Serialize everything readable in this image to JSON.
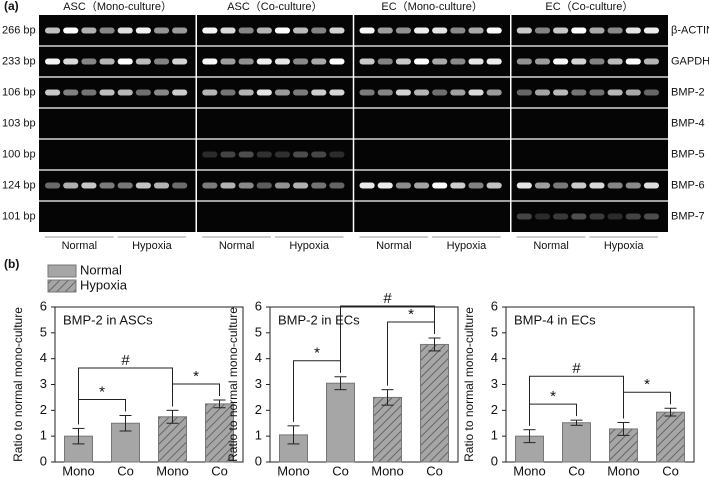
{
  "panel_a": {
    "label": "(a)",
    "groups": [
      "ASC（Mono-culture）",
      "ASC（Co-culture）",
      "EC（Mono-culture）",
      "EC（Co-culture）"
    ],
    "rows": [
      {
        "size": "266 bp",
        "gene": "β-ACTIN"
      },
      {
        "size": "233 bp",
        "gene": "GAPDH"
      },
      {
        "size": "106 bp",
        "gene": "BMP-2"
      },
      {
        "size": "103 bp",
        "gene": "BMP-4"
      },
      {
        "size": "100 bp",
        "gene": "BMP-5"
      },
      {
        "size": "124 bp",
        "gene": "BMP-6"
      },
      {
        "size": "101 bp",
        "gene": "BMP-7"
      }
    ],
    "conditions": [
      "Normal",
      "Hypoxia"
    ]
  },
  "panel_b": {
    "label": "(b)",
    "legend": [
      {
        "name": "Normal",
        "color": "#a6a6a6",
        "hatched": false
      },
      {
        "name": "Hypoxia",
        "color": "#a6a6a6",
        "hatched": true
      }
    ]
  },
  "chart_data": [
    {
      "type": "bar",
      "title": "BMP-2 in ASCs",
      "ylabel": "Ratio to normal mono-culture",
      "categories": [
        "Mono",
        "Co",
        "Mono",
        "Co"
      ],
      "values": [
        1.0,
        1.5,
        1.75,
        2.25
      ],
      "errors": [
        0.3,
        0.3,
        0.25,
        0.15
      ],
      "hatched": [
        false,
        false,
        true,
        true
      ],
      "color": "#a6a6a6",
      "ylim": [
        0,
        6
      ],
      "yticks": [
        0,
        1,
        2,
        3,
        4,
        5,
        6
      ],
      "annotations": [
        {
          "text": "*",
          "bars": [
            0,
            1
          ]
        },
        {
          "text": "*",
          "bars": [
            2,
            3
          ]
        },
        {
          "text": "#",
          "bars": [
            0,
            2
          ]
        }
      ]
    },
    {
      "type": "bar",
      "title": "BMP-2 in ECs",
      "ylabel": "Ratio to normal mono-culture",
      "categories": [
        "Mono",
        "Co",
        "Mono",
        "Co"
      ],
      "values": [
        1.05,
        3.05,
        2.5,
        4.55
      ],
      "errors": [
        0.35,
        0.25,
        0.3,
        0.25
      ],
      "hatched": [
        false,
        false,
        true,
        true
      ],
      "color": "#a6a6a6",
      "ylim": [
        0,
        6
      ],
      "yticks": [
        0,
        1,
        2,
        3,
        4,
        5,
        6
      ],
      "annotations": [
        {
          "text": "*",
          "bars": [
            0,
            1
          ]
        },
        {
          "text": "*",
          "bars": [
            2,
            3
          ]
        },
        {
          "text": "#",
          "bars": [
            1,
            3
          ]
        }
      ]
    },
    {
      "type": "bar",
      "title": "BMP-4 in ECs",
      "ylabel": "Ratio to normal mono-culture",
      "categories": [
        "Mono",
        "Co",
        "Mono",
        "Co"
      ],
      "values": [
        1.0,
        1.52,
        1.28,
        1.93
      ],
      "errors": [
        0.25,
        0.1,
        0.25,
        0.15
      ],
      "hatched": [
        false,
        false,
        true,
        true
      ],
      "color": "#a6a6a6",
      "ylim": [
        0,
        6
      ],
      "yticks": [
        0,
        1,
        2,
        3,
        4,
        5,
        6
      ],
      "annotations": [
        {
          "text": "*",
          "bars": [
            0,
            1
          ]
        },
        {
          "text": "*",
          "bars": [
            2,
            3
          ]
        },
        {
          "text": "#",
          "bars": [
            0,
            2
          ]
        }
      ]
    }
  ]
}
